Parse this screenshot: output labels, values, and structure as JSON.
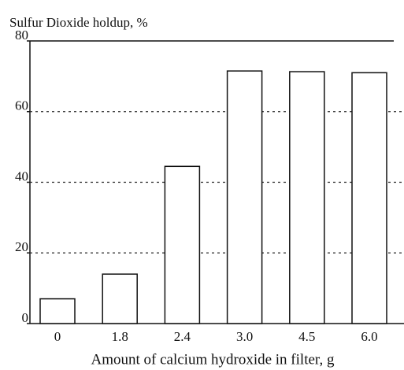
{
  "chart_data": {
    "type": "bar",
    "title": "Sulfur Dioxide holdup, %",
    "x_label": "Amount of calcium hydroxide in filter, g",
    "categories": [
      "0",
      "1.8",
      "2.4",
      "3.0",
      "4.5",
      "6.0"
    ],
    "values": [
      7,
      14,
      44.5,
      71.5,
      71.3,
      71
    ],
    "color": "#ffffff",
    "ylim": [
      0,
      80
    ],
    "yticks": [
      0,
      20,
      40,
      60,
      80
    ],
    "grid": true
  }
}
